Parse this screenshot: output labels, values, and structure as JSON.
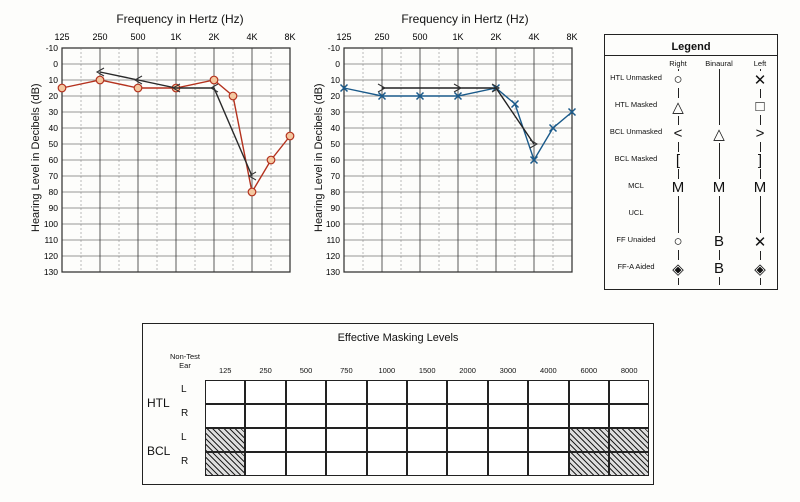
{
  "chart_data": [
    {
      "type": "line",
      "title": "Frequency in Hertz (Hz)",
      "ylabel": "Hearing Level in Decibels (dB)",
      "x_ticks": [
        "125",
        "250",
        "500",
        "1K",
        "2K",
        "4K",
        "8K"
      ],
      "y_ticks": [
        "-10",
        "0",
        "10",
        "20",
        "30",
        "40",
        "50",
        "60",
        "70",
        "80",
        "90",
        "100",
        "110",
        "120",
        "130"
      ],
      "ylim": [
        -10,
        130
      ],
      "series": [
        {
          "symbol": "HTL Unmasked Right",
          "color": "#b4321e",
          "x": [
            "125",
            "250",
            "500",
            "1K",
            "2K",
            "3K",
            "4K",
            "6K",
            "8K"
          ],
          "values": [
            15,
            10,
            15,
            15,
            10,
            20,
            80,
            60,
            45
          ]
        },
        {
          "symbol": "BCL Unmasked Right",
          "color": "#2a2a2a",
          "x": [
            "250",
            "500",
            "1K",
            "2K",
            "4K"
          ],
          "values": [
            5,
            10,
            15,
            15,
            70
          ]
        }
      ]
    },
    {
      "type": "line",
      "title": "Frequency in Hertz (Hz)",
      "ylabel": "Hearing Level in Decibels (dB)",
      "x_ticks": [
        "125",
        "250",
        "500",
        "1K",
        "2K",
        "4K",
        "8K"
      ],
      "y_ticks": [
        "-10",
        "0",
        "10",
        "20",
        "30",
        "40",
        "50",
        "60",
        "70",
        "80",
        "90",
        "100",
        "110",
        "120",
        "130"
      ],
      "ylim": [
        -10,
        130
      ],
      "series": [
        {
          "symbol": "HTL Unmasked Left",
          "color": "#1a5a8a",
          "x": [
            "125",
            "250",
            "500",
            "1K",
            "2K",
            "3K",
            "4K",
            "6K",
            "8K"
          ],
          "values": [
            15,
            20,
            20,
            20,
            15,
            25,
            60,
            40,
            30
          ]
        },
        {
          "symbol": "BCL Unmasked Left",
          "color": "#222",
          "x": [
            "250",
            "1K",
            "2K",
            "4K"
          ],
          "values": [
            15,
            15,
            15,
            50
          ]
        }
      ]
    }
  ],
  "legend": {
    "title": "Legend",
    "columns": [
      "Right",
      "Binaural",
      "Left"
    ],
    "rows": [
      {
        "label": "HTL Unmasked",
        "right": "○",
        "binaural": "",
        "left": "✕"
      },
      {
        "label": "HTL Masked",
        "right": "△",
        "binaural": "",
        "left": "□"
      },
      {
        "label": "BCL Unmasked",
        "right": "<",
        "binaural": "△",
        "left": ">"
      },
      {
        "label": "BCL Masked",
        "right": "[",
        "binaural": "",
        "left": "]"
      },
      {
        "label": "MCL",
        "right": "M",
        "binaural": "M",
        "left": "M"
      },
      {
        "label": "UCL",
        "right": "",
        "binaural": "",
        "left": ""
      },
      {
        "label": "FF Unaided",
        "right": "○",
        "binaural": "B",
        "left": "✕"
      },
      {
        "label": "FF-A Aided",
        "right": "◈",
        "binaural": "B",
        "left": "◈"
      }
    ]
  },
  "masking": {
    "title": "Effective Masking Levels",
    "non_test_ear": "Non-Test Ear",
    "freqs": [
      "125",
      "250",
      "500",
      "750",
      "1000",
      "1500",
      "2000",
      "3000",
      "4000",
      "6000",
      "8000"
    ],
    "groups": [
      {
        "name": "HTL",
        "ears": [
          "L",
          "R"
        ]
      },
      {
        "name": "BCL",
        "ears": [
          "L",
          "R"
        ]
      }
    ]
  }
}
